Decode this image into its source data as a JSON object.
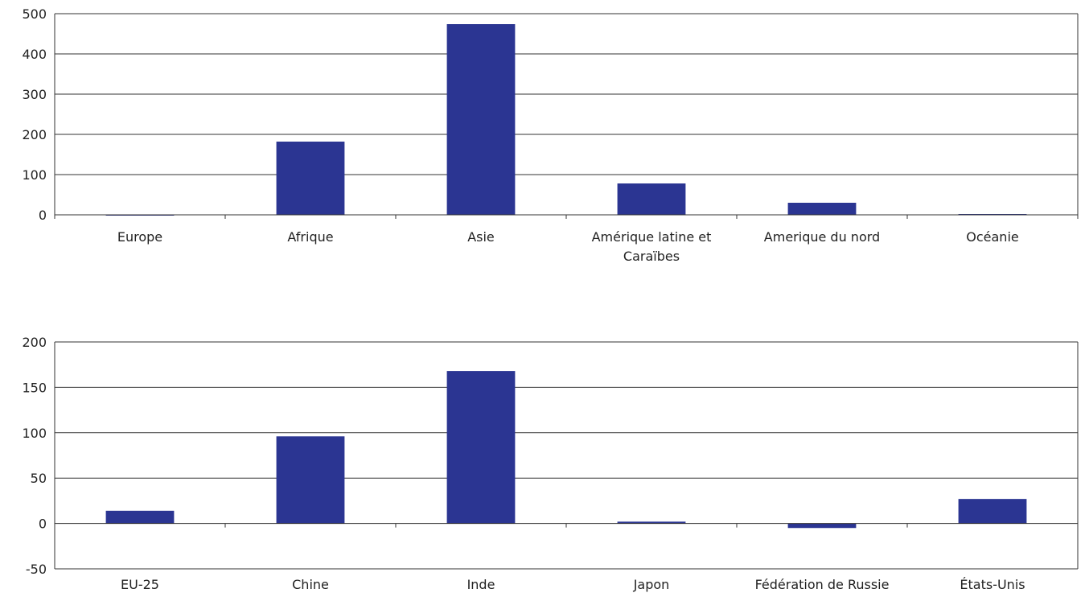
{
  "chart_data": [
    {
      "type": "bar",
      "categories": [
        [
          "Europe"
        ],
        [
          "Afrique"
        ],
        [
          "Asie"
        ],
        [
          "Amérique latine et",
          "Caraïbes"
        ],
        [
          "Amerique du nord"
        ],
        [
          "Océanie"
        ]
      ],
      "values": [
        0,
        182,
        474,
        78,
        30,
        2
      ],
      "ylim": [
        0,
        500
      ],
      "yticks": [
        "0",
        "100",
        "200",
        "300",
        "400",
        "500"
      ],
      "grid": true,
      "bar_color": "#2B3592"
    },
    {
      "type": "bar",
      "categories": [
        [
          "EU-25"
        ],
        [
          "Chine"
        ],
        [
          "Inde"
        ],
        [
          "Japon"
        ],
        [
          "Fédération de Russie"
        ],
        [
          "États-Unis"
        ]
      ],
      "values": [
        14,
        96,
        168,
        2,
        -5,
        27
      ],
      "ylim": [
        -50,
        200
      ],
      "yticks": [
        "-50",
        "0",
        "50",
        "100",
        "150",
        "200"
      ],
      "grid": true,
      "bar_color": "#2B3592"
    }
  ]
}
